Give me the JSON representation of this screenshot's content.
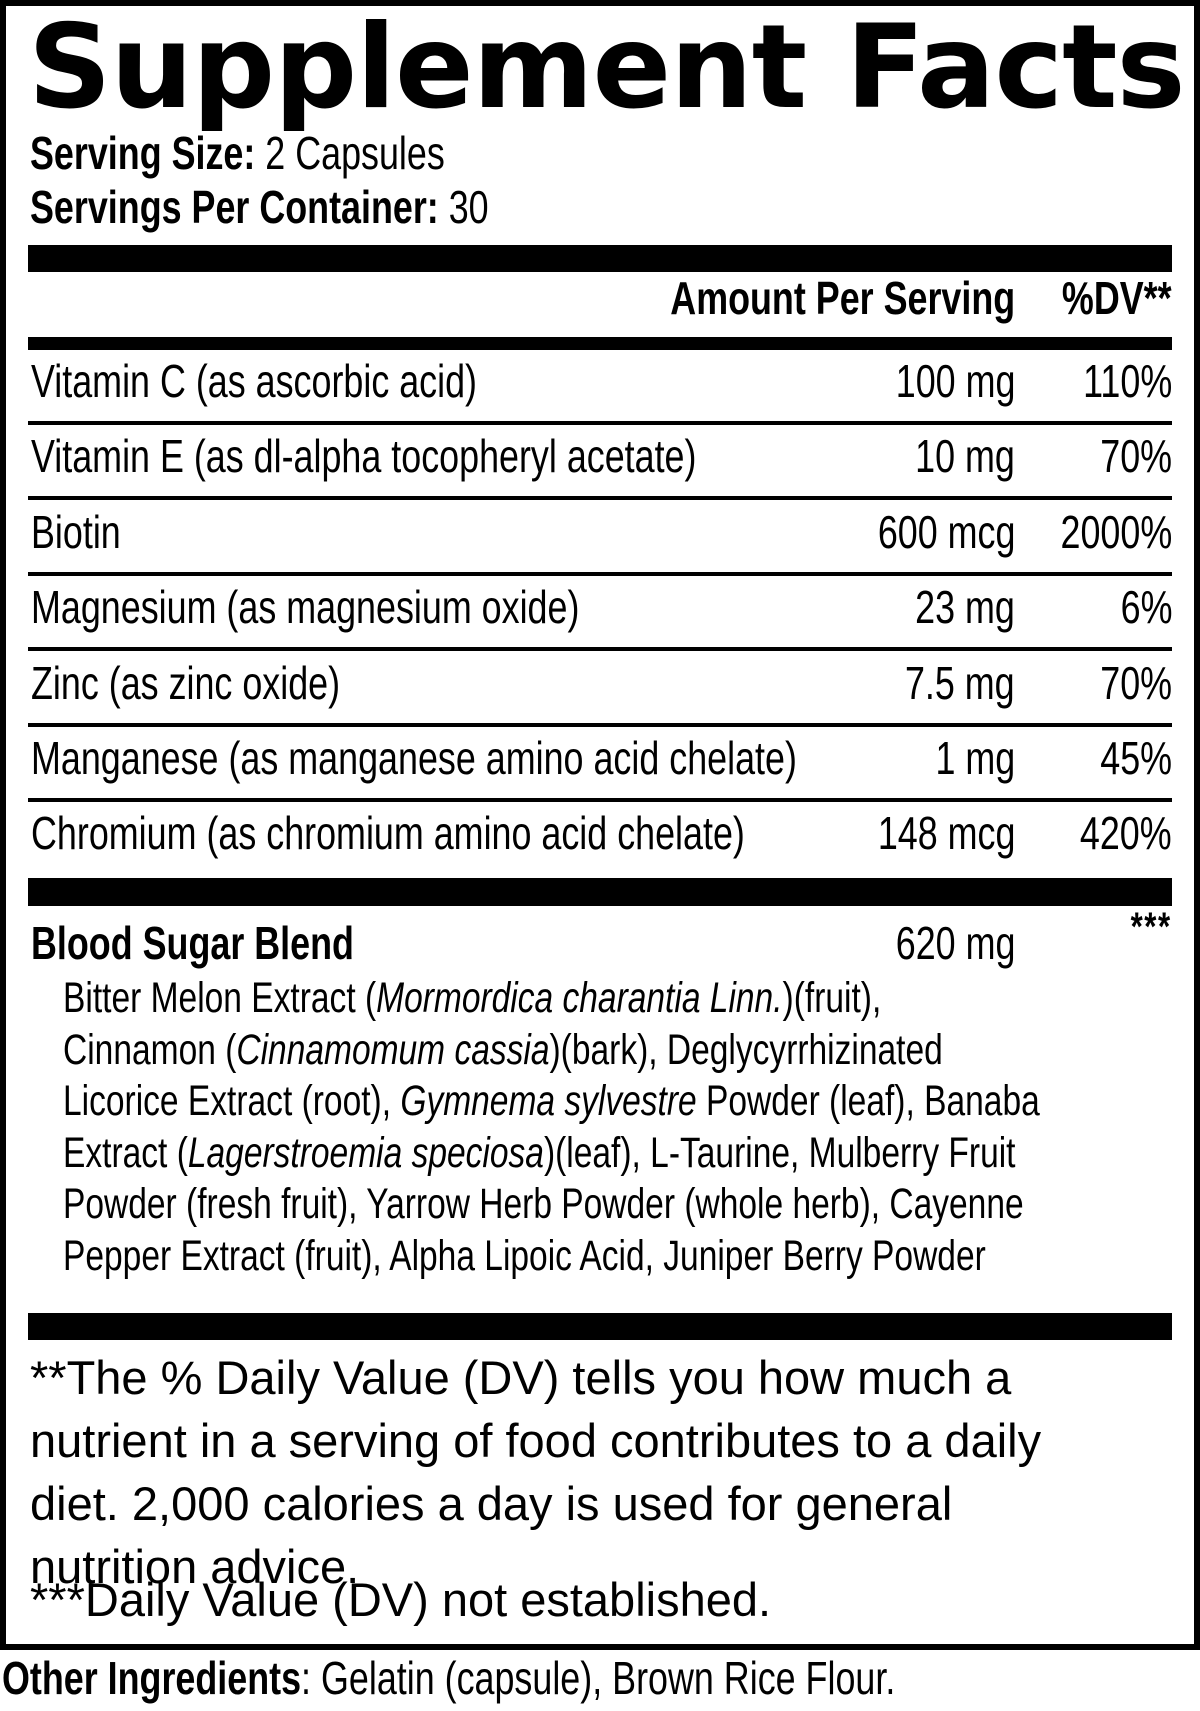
{
  "title": "Supplement Facts",
  "serving": {
    "size_label": "Serving Size:",
    "size_value": " 2 Capsules",
    "container_label": "Servings Per Container:",
    "container_value": " 30"
  },
  "columns": {
    "amount": "Amount Per Serving",
    "dv": "%DV**"
  },
  "nutrients": [
    {
      "name": "Vitamin C (as ascorbic acid)",
      "amount": "100 mg",
      "dv": "110%"
    },
    {
      "name": "Vitamin E (as dl-alpha tocopheryl acetate)",
      "amount": "10 mg",
      "dv": "70%"
    },
    {
      "name": "Biotin",
      "amount": "600 mcg",
      "dv": "2000%"
    },
    {
      "name": "Magnesium (as magnesium oxide)",
      "amount": "23 mg",
      "dv": "6%"
    },
    {
      "name": "Zinc (as zinc oxide)",
      "amount": "7.5 mg",
      "dv": "70%"
    },
    {
      "name": "Manganese (as manganese amino acid chelate)",
      "amount": "1 mg",
      "dv": "45%"
    },
    {
      "name": "Chromium (as chromium amino acid chelate)",
      "amount": "148 mcg",
      "dv": "420%"
    }
  ],
  "blend": {
    "name": "Blood Sugar Blend",
    "amount": "620 mg",
    "dv": "***",
    "ingredient_lines": [
      [
        {
          "t": "Bitter Melon Extract ("
        },
        {
          "t": "Mormordica charantia Linn.",
          "i": true
        },
        {
          "t": ")(fruit),"
        }
      ],
      [
        {
          "t": "Cinnamon ("
        },
        {
          "t": "Cinnamomum cassia",
          "i": true
        },
        {
          "t": ")(bark), Deglycyrrhizinated"
        }
      ],
      [
        {
          "t": "Licorice Extract (root), "
        },
        {
          "t": "Gymnema sylvestre",
          "i": true
        },
        {
          "t": " Powder (leaf), Banaba"
        }
      ],
      [
        {
          "t": "Extract ("
        },
        {
          "t": "Lagerstroemia speciosa",
          "i": true
        },
        {
          "t": ")(leaf), L-Taurine, Mulberry Fruit"
        }
      ],
      [
        {
          "t": "Powder (fresh fruit), Yarrow Herb Powder (whole herb), Cayenne"
        }
      ],
      [
        {
          "t": "Pepper Extract (fruit), Alpha Lipoic Acid, Juniper Berry Powder"
        }
      ]
    ]
  },
  "footnote": {
    "dv_lines": [
      "**The % Daily Value (DV) tells you how much a",
      "nutrient in a serving of food contributes to a daily",
      "diet. 2,000 calories a day is used for general",
      "nutrition advice."
    ],
    "not_established": "***Daily Value (DV) not established."
  },
  "other_ingredients": {
    "label": "Other Ingredients",
    "text": ": Gelatin (capsule), Brown Rice Flour."
  },
  "colors": {
    "ink": "#000000",
    "paper": "#ffffff"
  }
}
